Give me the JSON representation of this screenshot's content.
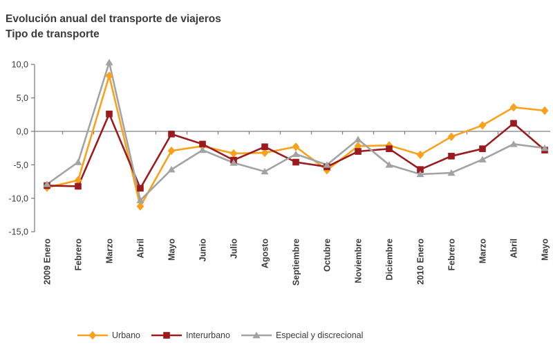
{
  "title": "Evolución anual del transporte de viajeros",
  "subtitle": "Tipo de transporte",
  "colors": {
    "urbano": "#F9A11B",
    "interurbano": "#9A1A1D",
    "especial": "#A3A3A3",
    "axis": "#808080",
    "text": "#3a3a3a"
  },
  "chart_data": {
    "type": "line",
    "title": "Evolución anual del transporte de viajeros",
    "subtitle": "Tipo de transporte",
    "categories": [
      "2009 Enero",
      "Febrero",
      "Marzo",
      "Abril",
      "Mayo",
      "Junio",
      "Julio",
      "Agosto",
      "Septiembre",
      "Octubre",
      "Noviembre",
      "Diciembre",
      "2010 Enero",
      "Febrero",
      "Marzo",
      "Abril",
      "Mayo"
    ],
    "series": [
      {
        "name": "Urbano",
        "marker": "diamond",
        "color_key": "urbano",
        "values": [
          -8.4,
          -7.3,
          8.3,
          -11.2,
          -2.9,
          -2.2,
          -3.3,
          -3.2,
          -2.3,
          -5.8,
          -2.2,
          -2.1,
          -3.5,
          -0.8,
          0.9,
          3.6,
          3.1
        ]
      },
      {
        "name": "Interurbano",
        "marker": "square",
        "color_key": "interurbano",
        "values": [
          -8.1,
          -8.2,
          2.6,
          -8.5,
          -0.4,
          -1.9,
          -4.3,
          -2.3,
          -4.6,
          -5.3,
          -3.0,
          -2.6,
          -5.7,
          -3.7,
          -2.6,
          1.2,
          -2.8
        ]
      },
      {
        "name": "Especial y discrecional",
        "marker": "triangle",
        "color_key": "especial",
        "values": [
          -7.9,
          -4.6,
          10.3,
          -10.3,
          -5.7,
          -2.8,
          -4.7,
          -6.0,
          -3.4,
          -5.0,
          -1.2,
          -5.0,
          -6.4,
          -6.2,
          -4.2,
          -1.9,
          -2.5
        ]
      }
    ],
    "ylim": [
      -15,
      10
    ],
    "ytick_step": 5,
    "yticks": [
      10,
      5,
      0,
      -5,
      -10,
      -15
    ],
    "ytick_labels": [
      "10,0",
      "5,0",
      "0,0",
      "-5,0",
      "-10,0",
      "-15,0"
    ],
    "xlabel": "",
    "ylabel": "",
    "grid": false,
    "legend_position": "bottom"
  }
}
